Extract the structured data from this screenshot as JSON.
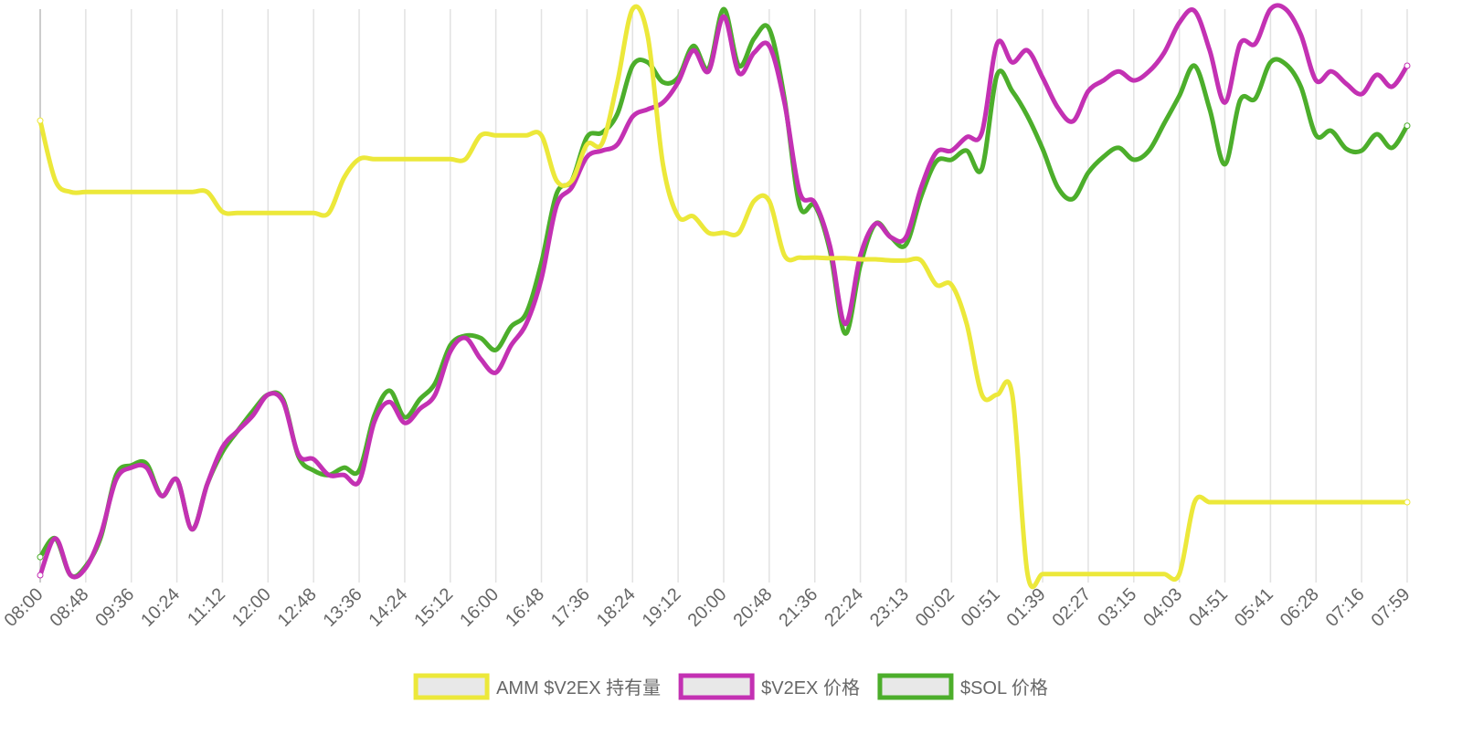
{
  "chart_data": {
    "type": "line",
    "categories": [
      "08:00",
      null,
      null,
      "08:48",
      null,
      null,
      "09:36",
      null,
      null,
      "10:24",
      null,
      null,
      "11:12",
      null,
      null,
      "12:00",
      null,
      null,
      "12:48",
      null,
      null,
      "13:36",
      null,
      null,
      "14:24",
      null,
      null,
      "15:12",
      null,
      null,
      "16:00",
      null,
      null,
      "16:48",
      null,
      null,
      "17:36",
      null,
      null,
      "18:24",
      null,
      null,
      "19:12",
      null,
      null,
      "20:00",
      null,
      null,
      "20:48",
      null,
      null,
      "21:36",
      null,
      null,
      "22:24",
      null,
      null,
      "23:13",
      null,
      null,
      "00:02",
      null,
      null,
      "00:51",
      null,
      null,
      "01:39",
      null,
      null,
      "02:27",
      null,
      null,
      "03:15",
      null,
      null,
      "04:03",
      null,
      null,
      "04:51",
      null,
      null,
      "05:41",
      null,
      null,
      "06:28",
      null,
      null,
      "07:16",
      null,
      null,
      "07:59"
    ],
    "ylim": [
      0,
      100
    ],
    "grid": true,
    "legend": "bottom",
    "series": [
      {
        "name": "AMM $V2EX 持有量",
        "color": "#ece83a",
        "values": [
          80.3,
          69.7,
          67.7,
          67.7,
          67.7,
          67.7,
          67.7,
          67.7,
          67.7,
          67.7,
          67.7,
          67.7,
          64.2,
          64.0,
          64.0,
          64.0,
          64.0,
          64.0,
          64.0,
          64.0,
          70.2,
          73.5,
          73.5,
          73.5,
          73.5,
          73.5,
          73.5,
          73.5,
          73.5,
          77.7,
          77.7,
          77.7,
          77.7,
          77.7,
          69.7,
          69.7,
          76.1,
          76.3,
          87.1,
          100,
          95.2,
          72.6,
          63.4,
          63.4,
          60.5,
          60.5,
          60.5,
          66.1,
          66.1,
          56.5,
          56.1,
          56.1,
          56.0,
          56.0,
          55.8,
          55.8,
          55.6,
          55.6,
          55.6,
          51.3,
          51.3,
          44.4,
          31.9,
          31.9,
          31.9,
          0.3,
          0.2,
          0.2,
          0.2,
          0.2,
          0.2,
          0.2,
          0.2,
          0.2,
          0.2,
          0.2,
          12.9,
          12.9,
          12.9,
          12.9,
          12.9,
          12.9,
          12.9,
          12.9,
          12.9,
          12.9,
          12.9,
          12.9,
          12.9,
          12.9,
          12.9
        ]
      },
      {
        "name": "$V2EX 价格",
        "color": "#c331b3",
        "values": [
          0,
          6.5,
          0,
          1.3,
          7.3,
          16.9,
          19.0,
          19.0,
          14.0,
          16.9,
          8.1,
          16.1,
          22.6,
          25.5,
          28.2,
          31.9,
          30.6,
          21.3,
          20.5,
          17.7,
          17.7,
          16.6,
          27.1,
          30.6,
          26.9,
          29.4,
          31.9,
          39.5,
          41.9,
          38.2,
          35.8,
          40.6,
          44.4,
          52.4,
          65.3,
          68.5,
          73.9,
          75.0,
          76.1,
          81.0,
          82.3,
          83.5,
          87.1,
          92.7,
          89.0,
          98.7,
          88.7,
          92.3,
          93.5,
          83.5,
          67.7,
          65.8,
          58.1,
          44.4,
          56.5,
          62.1,
          59.7,
          59.7,
          68.5,
          74.7,
          75.0,
          77.4,
          78.2,
          93.9,
          90.6,
          92.7,
          87.9,
          82.6,
          80.2,
          85.5,
          87.4,
          89.0,
          87.4,
          89.0,
          92.3,
          97.6,
          99.7,
          92.7,
          83.5,
          93.9,
          93.9,
          100,
          100,
          95.5,
          87.4,
          89.0,
          86.8,
          85.0,
          88.4,
          86.3,
          90.0
        ]
      },
      {
        "name": "$SOL 价格",
        "color": "#4cae2b",
        "values": [
          3.2,
          6.5,
          0,
          1.6,
          6.8,
          17.7,
          19.4,
          19.7,
          14.0,
          16.9,
          8.1,
          16.1,
          21.8,
          25.5,
          29.0,
          31.9,
          31.0,
          21.0,
          18.5,
          17.7,
          19.0,
          18.5,
          28.2,
          32.6,
          27.9,
          31.1,
          33.9,
          40.6,
          42.3,
          41.9,
          39.8,
          43.9,
          46.3,
          55.2,
          67.4,
          69.7,
          77.4,
          78.2,
          81.5,
          90.0,
          90.6,
          87.1,
          87.9,
          93.5,
          89.5,
          100,
          90.0,
          94.8,
          96.5,
          84.2,
          65.3,
          65.3,
          57.3,
          42.7,
          54.8,
          62.1,
          59.7,
          58.4,
          66.9,
          73.1,
          73.4,
          75.0,
          71.8,
          88.4,
          85.5,
          81.1,
          75.3,
          68.5,
          66.5,
          71.1,
          73.9,
          75.5,
          73.4,
          75.0,
          79.8,
          84.7,
          90.0,
          82.3,
          72.6,
          83.9,
          84.2,
          90.6,
          90.3,
          86.3,
          77.7,
          78.5,
          75.3,
          75.0,
          77.9,
          75.5,
          79.4
        ]
      }
    ]
  }
}
